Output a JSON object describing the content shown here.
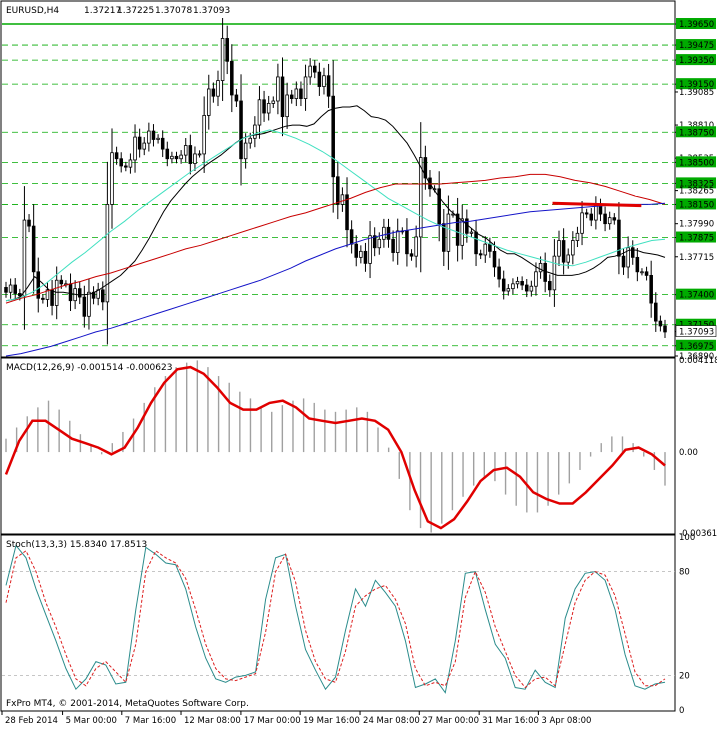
{
  "chart_data": [
    {
      "panel": "price",
      "type": "candlestick",
      "symbol": "EURUSD,H4",
      "ohlc_header": [
        "1.37217",
        "1.37225",
        "1.37078",
        "1.37093"
      ],
      "ylim": [
        1.3689,
        1.397
      ],
      "y_ticks": [
        "1.39650",
        "1.39475",
        "1.39350",
        "1.39150",
        "1.39085",
        "1.38810",
        "1.38750",
        "1.38535",
        "1.38500",
        "1.38325",
        "1.38265",
        "1.38150",
        "1.37990",
        "1.37875",
        "1.37715",
        "1.37400",
        "1.37150",
        "1.37093",
        "1.36975",
        "1.36890"
      ],
      "y_tick_values": [
        1.3965,
        1.39475,
        1.3935,
        1.3915,
        1.39085,
        1.3881,
        1.3875,
        1.38535,
        1.385,
        1.38325,
        1.38265,
        1.3815,
        1.3799,
        1.37875,
        1.37715,
        1.374,
        1.3715,
        1.37093,
        1.36975,
        1.3689
      ],
      "highlighted_levels": [
        "1.39650",
        "1.39475",
        "1.39350",
        "1.39150",
        "1.38750",
        "1.38500",
        "1.38325",
        "1.38150",
        "1.37875",
        "1.37400",
        "1.37150",
        "1.36975"
      ],
      "highlighted_values": [
        1.3965,
        1.39475,
        1.3935,
        1.3915,
        1.3875,
        1.385,
        1.38325,
        1.3815,
        1.37875,
        1.374,
        1.3715,
        1.36975
      ],
      "current_price": "1.37093",
      "current_value": 1.37093,
      "close_series": [
        1.3742,
        1.3748,
        1.3741,
        1.3739,
        1.3802,
        1.3797,
        1.3759,
        1.3737,
        1.3736,
        1.3744,
        1.3731,
        1.3752,
        1.3749,
        1.3749,
        1.3735,
        1.3745,
        1.3738,
        1.3722,
        1.3742,
        1.3737,
        1.3744,
        1.3734,
        1.3815,
        1.3858,
        1.3853,
        1.3847,
        1.3846,
        1.3852,
        1.3871,
        1.3861,
        1.3866,
        1.3876,
        1.3869,
        1.387,
        1.3861,
        1.3853,
        1.3855,
        1.3853,
        1.3856,
        1.3864,
        1.3849,
        1.3857,
        1.3857,
        1.3889,
        1.3911,
        1.3905,
        1.3918,
        1.3953,
        1.3934,
        1.3906,
        1.3901,
        1.3853,
        1.3866,
        1.387,
        1.3881,
        1.3902,
        1.3891,
        1.3899,
        1.3901,
        1.3921,
        1.3888,
        1.3906,
        1.3903,
        1.3911,
        1.3903,
        1.3921,
        1.393,
        1.3925,
        1.3913,
        1.3922,
        1.3905,
        1.3838,
        1.3815,
        1.3823,
        1.3794,
        1.3782,
        1.3771,
        1.3776,
        1.3766,
        1.3789,
        1.3779,
        1.3786,
        1.3796,
        1.3786,
        1.3775,
        1.3793,
        1.3793,
        1.3774,
        1.3772,
        1.3788,
        1.3854,
        1.3837,
        1.3828,
        1.3828,
        1.3799,
        1.3776,
        1.3807,
        1.3807,
        1.3781,
        1.3803,
        1.3791,
        1.3792,
        1.3774,
        1.3773,
        1.3782,
        1.3776,
        1.3763,
        1.3753,
        1.3743,
        1.3745,
        1.3749,
        1.3751,
        1.3748,
        1.3743,
        1.3747,
        1.3759,
        1.3766,
        1.3751,
        1.3744,
        1.3772,
        1.3785,
        1.3767,
        1.3773,
        1.3785,
        1.3791,
        1.3808,
        1.3807,
        1.3802,
        1.3814,
        1.3807,
        1.3799,
        1.3804,
        1.3802,
        1.3772,
        1.3763,
        1.3779,
        1.3771,
        1.3759,
        1.3759,
        1.3756,
        1.3733,
        1.3718,
        1.3714,
        1.3709
      ],
      "moving_averages": [
        {
          "color": "#000000",
          "values": [
            1.3735,
            1.3736,
            1.3738,
            1.3746,
            1.3755,
            1.375,
            1.3744,
            1.3742,
            1.3742,
            1.3741,
            1.374,
            1.374,
            1.3741,
            1.3744,
            1.3748,
            1.3752,
            1.3756,
            1.3762,
            1.3768,
            1.3777,
            1.3787,
            1.3798,
            1.3809,
            1.3818,
            1.3825,
            1.3832,
            1.3838,
            1.3843,
            1.3848,
            1.3852,
            1.3856,
            1.3861,
            1.3866,
            1.387,
            1.3872,
            1.3873,
            1.3874,
            1.3876,
            1.3878,
            1.388,
            1.3881,
            1.3881,
            1.388,
            1.3882,
            1.3888,
            1.3893,
            1.3895,
            1.3896,
            1.3896,
            1.3897,
            1.3893,
            1.3888,
            1.3887,
            1.3885,
            1.388,
            1.3873,
            1.3866,
            1.3856,
            1.3845,
            1.3834,
            1.3825,
            1.3817,
            1.381,
            1.3805,
            1.38,
            1.3795,
            1.379,
            1.3787,
            1.3782,
            1.3777,
            1.3774,
            1.3774,
            1.3771,
            1.3767,
            1.3763,
            1.376,
            1.3758,
            1.3756,
            1.3756,
            1.3756,
            1.3757,
            1.3759,
            1.3762,
            1.3766,
            1.3771,
            1.3772,
            1.3774,
            1.3777,
            1.3777,
            1.3775,
            1.3774,
            1.3773,
            1.3771
          ]
        },
        {
          "color": "#40e0c0",
          "values": [
            1.3735,
            1.3737,
            1.3742,
            1.3749,
            1.3758,
            1.3767,
            1.3775,
            1.3784,
            1.3793,
            1.3801,
            1.381,
            1.3818,
            1.3826,
            1.3834,
            1.3842,
            1.3849,
            1.3856,
            1.3863,
            1.387,
            1.3874,
            1.3877,
            1.3874,
            1.387,
            1.3865,
            1.3859,
            1.3852,
            1.3844,
            1.3836,
            1.3828,
            1.382,
            1.3814,
            1.3808,
            1.3802,
            1.3797,
            1.3793,
            1.3789,
            1.3785,
            1.3781,
            1.3777,
            1.3774,
            1.3771,
            1.3768,
            1.3765,
            1.3764,
            1.3767,
            1.3771,
            1.3775,
            1.3779,
            1.3782,
            1.3785,
            1.3786
          ]
        },
        {
          "color": "#c80000",
          "values": [
            1.3733,
            1.3737,
            1.374,
            1.3744,
            1.3748,
            1.3751,
            1.3755,
            1.3758,
            1.3762,
            1.3766,
            1.377,
            1.3774,
            1.3778,
            1.3781,
            1.3785,
            1.3789,
            1.3793,
            1.3797,
            1.3801,
            1.3805,
            1.3808,
            1.3812,
            1.3816,
            1.382,
            1.3825,
            1.3829,
            1.3832,
            1.3832,
            1.3832,
            1.3832,
            1.3833,
            1.3834,
            1.3835,
            1.3837,
            1.3838,
            1.384,
            1.384,
            1.3838,
            1.3835,
            1.3833,
            1.383,
            1.3826,
            1.3822,
            1.3819,
            1.3815
          ]
        },
        {
          "color": "#1414c8",
          "values": [
            1.3689,
            1.3691,
            1.3694,
            1.3697,
            1.3701,
            1.3705,
            1.3709,
            1.3712,
            1.3716,
            1.372,
            1.3724,
            1.3728,
            1.3732,
            1.3736,
            1.374,
            1.3744,
            1.3748,
            1.3752,
            1.3757,
            1.3762,
            1.3768,
            1.3773,
            1.3778,
            1.3782,
            1.3786,
            1.3789,
            1.3792,
            1.3794,
            1.3796,
            1.3798,
            1.38,
            1.3801,
            1.3803,
            1.3805,
            1.3807,
            1.3809,
            1.381,
            1.3811,
            1.3812,
            1.3813,
            1.3814,
            1.3815,
            1.3815,
            1.3815,
            1.3816
          ]
        }
      ],
      "trendline": {
        "color": "#e00000",
        "from": [
          0.818,
          1.3816
        ],
        "to": [
          0.95,
          1.3814
        ]
      }
    },
    {
      "panel": "macd",
      "type": "bar+line",
      "header": "MACD(12,26,9) -0.001514 -0.000623",
      "ylim": [
        -0.003619,
        0.004118
      ],
      "y_ticks": [
        "0.004118",
        "0.00",
        "-0.003619"
      ],
      "y_tick_values": [
        0.004118,
        0.0,
        -0.003619
      ],
      "histogram": [
        0.0006,
        0.0011,
        0.0016,
        0.002,
        0.0023,
        0.0019,
        0.0014,
        0.0008,
        0.0003,
        -0.0001,
        0.0004,
        0.0009,
        0.0015,
        0.0022,
        0.0029,
        0.0034,
        0.0038,
        0.004,
        0.0041,
        0.0038,
        0.0034,
        0.0031,
        0.0027,
        0.0024,
        0.002,
        0.0018,
        0.0021,
        0.0023,
        0.0024,
        0.0022,
        0.0019,
        0.0018,
        0.0019,
        0.002,
        0.0018,
        0.0011,
        0.0002,
        -0.0012,
        -0.0026,
        -0.0034,
        -0.0036,
        -0.0032,
        -0.0026,
        -0.002,
        -0.0015,
        -0.0012,
        -0.0013,
        -0.0019,
        -0.0024,
        -0.0027,
        -0.0027,
        -0.0024,
        -0.0019,
        -0.0014,
        -0.0008,
        -0.0002,
        0.0004,
        0.0007,
        0.0007,
        0.0004,
        -0.0002,
        -0.0008,
        -0.0015
      ],
      "signal": [
        -0.001,
        0.0005,
        0.0014,
        0.0014,
        0.001,
        0.0006,
        0.0004,
        0.0002,
        -0.0001,
        0.0002,
        0.0011,
        0.0022,
        0.0031,
        0.0037,
        0.0038,
        0.0035,
        0.0029,
        0.0022,
        0.0019,
        0.0019,
        0.0022,
        0.0023,
        0.002,
        0.0015,
        0.0014,
        0.0013,
        0.0014,
        0.0015,
        0.0014,
        0.001,
        0.0,
        -0.0017,
        -0.0031,
        -0.0034,
        -0.003,
        -0.0022,
        -0.0013,
        -0.0008,
        -0.0007,
        -0.0011,
        -0.0018,
        -0.0021,
        -0.0023,
        -0.0023,
        -0.0018,
        -0.0012,
        -0.0006,
        0.0001,
        0.0002,
        -0.0001,
        -0.0006
      ]
    },
    {
      "panel": "stochastic",
      "type": "line",
      "header": "Stoch(13,3,3) 15.8340 17.8513",
      "ylim": [
        0,
        100
      ],
      "y_ticks": [
        "100",
        "80",
        "20",
        "0"
      ],
      "y_tick_values": [
        100,
        80,
        20,
        0
      ],
      "series": [
        {
          "color": "#2b8c8c",
          "values": [
            72,
            95,
            88,
            70,
            55,
            40,
            24,
            12,
            18,
            28,
            26,
            15,
            16,
            58,
            94,
            90,
            85,
            84,
            70,
            48,
            30,
            18,
            16,
            19,
            20,
            22,
            64,
            88,
            90,
            60,
            35,
            23,
            12,
            19,
            46,
            70,
            60,
            75,
            68,
            60,
            40,
            13,
            15,
            18,
            10,
            40,
            79,
            80,
            58,
            38,
            30,
            13,
            12,
            23,
            16,
            13,
            53,
            70,
            79,
            80,
            75,
            58,
            32,
            14,
            12,
            15,
            16
          ]
        },
        {
          "color": "#dc1e1e",
          "values": [
            62,
            88,
            92,
            80,
            62,
            48,
            32,
            18,
            14,
            24,
            28,
            22,
            16,
            38,
            80,
            92,
            88,
            85,
            76,
            58,
            38,
            24,
            18,
            17,
            19,
            21,
            45,
            80,
            90,
            74,
            46,
            28,
            18,
            16,
            34,
            60,
            66,
            70,
            72,
            64,
            50,
            24,
            14,
            16,
            14,
            28,
            65,
            80,
            68,
            48,
            34,
            20,
            13,
            18,
            19,
            14,
            38,
            62,
            75,
            80,
            78,
            66,
            44,
            22,
            14,
            14,
            18
          ]
        }
      ]
    }
  ],
  "x_axis": {
    "labels": [
      "28 Feb 2014",
      "5 Mar 00:00",
      "7 Mar 16:00",
      "12 Mar 08:00",
      "17 Mar 00:00",
      "19 Mar 16:00",
      "24 Mar 08:00",
      "27 Mar 00:00",
      "31 Mar 16:00",
      "3 Apr 08:00"
    ],
    "positions": [
      0.0,
      0.09,
      0.178,
      0.266,
      0.355,
      0.443,
      0.532,
      0.62,
      0.709,
      0.797
    ]
  },
  "footer_text": "FxPro MT4, © 2001-2014, MetaQuotes Software Corp.",
  "colors": {
    "background": "#ffffff",
    "grid": "#00aa00",
    "candle": "#000000",
    "macd_histogram": "#a0a0a0",
    "macd_signal": "#e00000",
    "axis": "#000000"
  }
}
